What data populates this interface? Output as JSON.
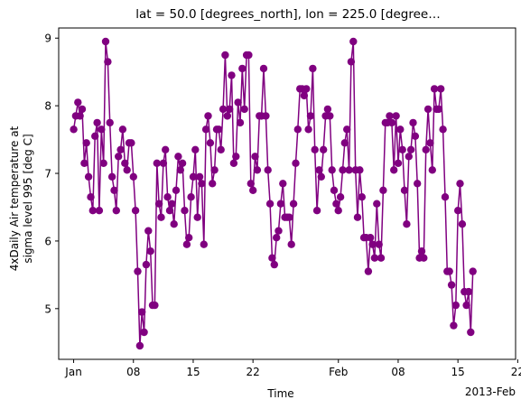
{
  "chart_data": {
    "type": "line",
    "title": "lat = 50.0 [degrees_north], lon = 225.0 [degree…",
    "xlabel": "Time",
    "ylabel_lines": [
      "4xDaily Air temperature at",
      "sigma level 995 [deg C]"
    ],
    "x_offset_label": "2013-Feb",
    "xlim": [
      "2012-12-30T06:00",
      "2013-02-21T18:00"
    ],
    "ylim": [
      4.25,
      9.15
    ],
    "x_ticks": [
      {
        "date": "2013-01-01",
        "label": "Jan"
      },
      {
        "date": "2013-01-08",
        "label": "08"
      },
      {
        "date": "2013-01-15",
        "label": "15"
      },
      {
        "date": "2013-01-22",
        "label": "22"
      },
      {
        "date": "2013-02-01",
        "label": "Feb"
      },
      {
        "date": "2013-02-08",
        "label": "08"
      },
      {
        "date": "2013-02-15",
        "label": "15"
      },
      {
        "date": "2013-02-22",
        "label": "22"
      }
    ],
    "y_ticks": [
      5,
      6,
      7,
      8,
      9
    ],
    "grid": false,
    "series": [
      {
        "color": "#800080",
        "marker": "circle",
        "start": "2013-01-01T00:00",
        "step_hours": 6,
        "values": [
          7.65,
          7.85,
          8.05,
          7.85,
          7.95,
          7.15,
          7.45,
          6.95,
          6.65,
          6.45,
          7.55,
          7.75,
          6.45,
          7.65,
          7.15,
          8.95,
          8.65,
          7.75,
          6.95,
          6.75,
          6.45,
          7.25,
          7.35,
          7.65,
          7.15,
          7.05,
          7.45,
          7.45,
          6.95,
          6.45,
          5.55,
          4.45,
          4.95,
          4.65,
          5.65,
          6.15,
          5.85,
          5.05,
          5.05,
          7.15,
          6.55,
          6.35,
          7.15,
          7.35,
          6.65,
          6.45,
          6.55,
          6.25,
          6.75,
          7.25,
          7.05,
          7.15,
          6.45,
          5.95,
          6.05,
          6.65,
          6.95,
          7.35,
          6.35,
          6.95,
          6.85,
          5.95,
          7.65,
          7.85,
          7.45,
          6.85,
          7.05,
          7.65,
          7.65,
          7.35,
          7.95,
          8.75,
          7.85,
          7.95,
          8.45,
          7.15,
          7.25,
          8.05,
          7.75,
          8.55,
          7.95,
          8.75,
          8.75,
          6.85,
          6.75,
          7.25,
          7.05,
          7.85,
          7.85,
          8.55,
          7.85,
          7.05,
          6.55,
          5.75,
          5.65,
          6.05,
          6.15,
          6.55,
          6.85,
          6.35,
          6.35,
          6.35,
          5.95,
          6.55,
          7.15,
          7.65,
          8.25,
          8.25,
          8.15,
          8.25,
          7.65,
          7.85,
          8.55,
          7.35,
          6.45,
          7.05,
          6.95,
          7.35,
          7.85,
          7.95,
          7.85,
          7.05,
          6.75,
          6.55,
          6.45,
          6.65,
          7.05,
          7.45,
          7.65,
          7.05,
          8.65,
          8.95,
          7.05,
          6.35,
          7.05,
          6.65,
          6.05,
          6.05,
          5.55,
          6.05,
          5.95,
          5.75,
          6.55,
          5.95,
          5.75,
          6.75,
          7.75,
          7.75,
          7.85,
          7.75,
          7.05,
          7.85,
          7.15,
          7.65,
          7.35,
          6.75,
          6.25,
          7.25,
          7.35,
          7.75,
          7.55,
          6.85,
          5.75,
          5.85,
          5.75,
          7.35,
          7.95,
          7.45,
          7.05,
          8.25,
          7.95,
          7.95,
          8.25,
          7.65,
          6.65,
          5.55,
          5.55,
          5.35,
          4.75,
          5.05,
          6.45,
          6.85,
          6.25,
          5.25,
          5.05,
          5.25,
          4.65,
          5.55
        ]
      }
    ]
  }
}
